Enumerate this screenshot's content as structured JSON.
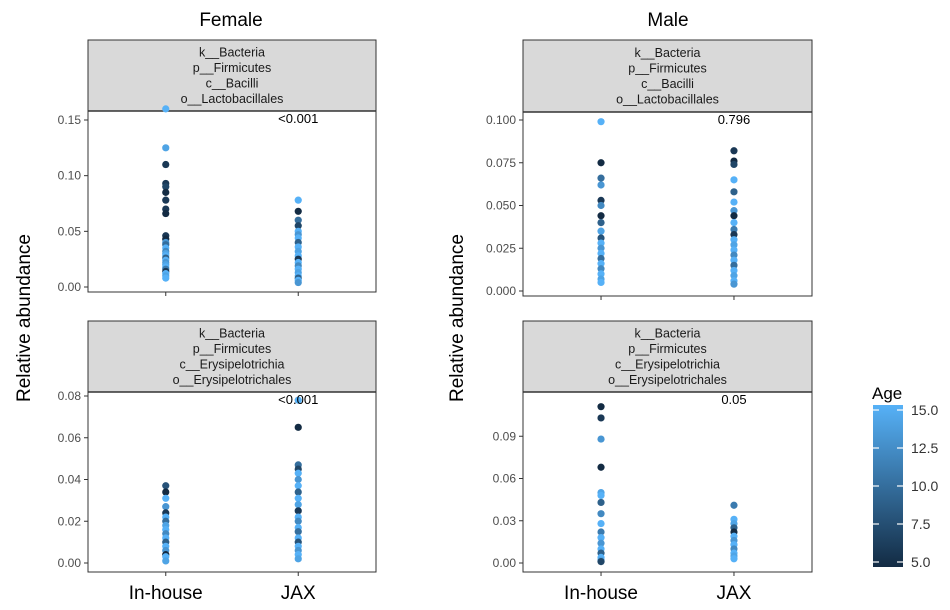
{
  "titles": {
    "female": "Female",
    "male": "Male"
  },
  "ylabel": "Relative abundance",
  "legend": {
    "title": "Age",
    "ticks": [
      "15.0",
      "12.5",
      "10.0",
      "7.5",
      "5.0"
    ],
    "min": 5,
    "max": 15,
    "color_low": "#132B43",
    "color_high": "#56B1F7"
  },
  "chart_data": [
    {
      "type": "scatter",
      "panel": "Female / Lactobacillales",
      "strip": [
        "k__Bacteria",
        "p__Firmicutes",
        "c__Bacilli",
        "o__Lactobacillales"
      ],
      "pvalue": "<0.001",
      "categories": [
        "In-house",
        "JAX"
      ],
      "ylim": [
        0,
        0.165
      ],
      "yticks": [
        "0.00",
        "0.05",
        "0.10",
        "0.15"
      ],
      "points": [
        {
          "x": "In-house",
          "y": 0.16,
          "age": 15
        },
        {
          "x": "In-house",
          "y": 0.125,
          "age": 14
        },
        {
          "x": "In-house",
          "y": 0.11,
          "age": 6
        },
        {
          "x": "In-house",
          "y": 0.093,
          "age": 6
        },
        {
          "x": "In-house",
          "y": 0.09,
          "age": 7
        },
        {
          "x": "In-house",
          "y": 0.085,
          "age": 5
        },
        {
          "x": "In-house",
          "y": 0.078,
          "age": 6
        },
        {
          "x": "In-house",
          "y": 0.07,
          "age": 6
        },
        {
          "x": "In-house",
          "y": 0.066,
          "age": 5
        },
        {
          "x": "In-house",
          "y": 0.046,
          "age": 6
        },
        {
          "x": "In-house",
          "y": 0.043,
          "age": 5
        },
        {
          "x": "In-house",
          "y": 0.04,
          "age": 13
        },
        {
          "x": "In-house",
          "y": 0.038,
          "age": 10
        },
        {
          "x": "In-house",
          "y": 0.035,
          "age": 15
        },
        {
          "x": "In-house",
          "y": 0.032,
          "age": 12
        },
        {
          "x": "In-house",
          "y": 0.03,
          "age": 14
        },
        {
          "x": "In-house",
          "y": 0.028,
          "age": 15
        },
        {
          "x": "In-house",
          "y": 0.026,
          "age": 9
        },
        {
          "x": "In-house",
          "y": 0.024,
          "age": 15
        },
        {
          "x": "In-house",
          "y": 0.022,
          "age": 13
        },
        {
          "x": "In-house",
          "y": 0.02,
          "age": 14
        },
        {
          "x": "In-house",
          "y": 0.018,
          "age": 15
        },
        {
          "x": "In-house",
          "y": 0.016,
          "age": 11
        },
        {
          "x": "In-house",
          "y": 0.014,
          "age": 6
        },
        {
          "x": "In-house",
          "y": 0.012,
          "age": 15
        },
        {
          "x": "In-house",
          "y": 0.01,
          "age": 14
        },
        {
          "x": "In-house",
          "y": 0.008,
          "age": 15
        },
        {
          "x": "JAX",
          "y": 0.078,
          "age": 15
        },
        {
          "x": "JAX",
          "y": 0.068,
          "age": 5
        },
        {
          "x": "JAX",
          "y": 0.06,
          "age": 10
        },
        {
          "x": "JAX",
          "y": 0.055,
          "age": 7
        },
        {
          "x": "JAX",
          "y": 0.05,
          "age": 15
        },
        {
          "x": "JAX",
          "y": 0.047,
          "age": 13
        },
        {
          "x": "JAX",
          "y": 0.044,
          "age": 15
        },
        {
          "x": "JAX",
          "y": 0.04,
          "age": 9
        },
        {
          "x": "JAX",
          "y": 0.036,
          "age": 15
        },
        {
          "x": "JAX",
          "y": 0.032,
          "age": 14
        },
        {
          "x": "JAX",
          "y": 0.028,
          "age": 15
        },
        {
          "x": "JAX",
          "y": 0.025,
          "age": 6
        },
        {
          "x": "JAX",
          "y": 0.022,
          "age": 15
        },
        {
          "x": "JAX",
          "y": 0.019,
          "age": 12
        },
        {
          "x": "JAX",
          "y": 0.016,
          "age": 15
        },
        {
          "x": "JAX",
          "y": 0.013,
          "age": 14
        },
        {
          "x": "JAX",
          "y": 0.01,
          "age": 15
        },
        {
          "x": "JAX",
          "y": 0.008,
          "age": 9
        },
        {
          "x": "JAX",
          "y": 0.006,
          "age": 15
        },
        {
          "x": "JAX",
          "y": 0.004,
          "age": 13
        }
      ]
    },
    {
      "type": "scatter",
      "panel": "Male / Lactobacillales",
      "strip": [
        "k__Bacteria",
        "p__Firmicutes",
        "c__Bacilli",
        "o__Lactobacillales"
      ],
      "pvalue": "0.796",
      "categories": [
        "In-house",
        "JAX"
      ],
      "ylim": [
        0,
        0.1
      ],
      "yticks": [
        "0.000",
        "0.025",
        "0.050",
        "0.075",
        "0.100"
      ],
      "points": [
        {
          "x": "In-house",
          "y": 0.099,
          "age": 15
        },
        {
          "x": "In-house",
          "y": 0.075,
          "age": 5
        },
        {
          "x": "In-house",
          "y": 0.066,
          "age": 10
        },
        {
          "x": "In-house",
          "y": 0.062,
          "age": 13
        },
        {
          "x": "In-house",
          "y": 0.053,
          "age": 6
        },
        {
          "x": "In-house",
          "y": 0.05,
          "age": 12
        },
        {
          "x": "In-house",
          "y": 0.044,
          "age": 5
        },
        {
          "x": "In-house",
          "y": 0.04,
          "age": 9
        },
        {
          "x": "In-house",
          "y": 0.035,
          "age": 14
        },
        {
          "x": "In-house",
          "y": 0.031,
          "age": 8
        },
        {
          "x": "In-house",
          "y": 0.028,
          "age": 15
        },
        {
          "x": "In-house",
          "y": 0.025,
          "age": 13
        },
        {
          "x": "In-house",
          "y": 0.022,
          "age": 15
        },
        {
          "x": "In-house",
          "y": 0.019,
          "age": 10
        },
        {
          "x": "In-house",
          "y": 0.016,
          "age": 15
        },
        {
          "x": "In-house",
          "y": 0.013,
          "age": 12
        },
        {
          "x": "In-house",
          "y": 0.01,
          "age": 15
        },
        {
          "x": "In-house",
          "y": 0.007,
          "age": 14
        },
        {
          "x": "In-house",
          "y": 0.005,
          "age": 15
        },
        {
          "x": "JAX",
          "y": 0.082,
          "age": 6
        },
        {
          "x": "JAX",
          "y": 0.076,
          "age": 5
        },
        {
          "x": "JAX",
          "y": 0.074,
          "age": 7
        },
        {
          "x": "JAX",
          "y": 0.065,
          "age": 15
        },
        {
          "x": "JAX",
          "y": 0.058,
          "age": 9
        },
        {
          "x": "JAX",
          "y": 0.052,
          "age": 15
        },
        {
          "x": "JAX",
          "y": 0.047,
          "age": 13
        },
        {
          "x": "JAX",
          "y": 0.044,
          "age": 5
        },
        {
          "x": "JAX",
          "y": 0.04,
          "age": 15
        },
        {
          "x": "JAX",
          "y": 0.036,
          "age": 11
        },
        {
          "x": "JAX",
          "y": 0.033,
          "age": 6
        },
        {
          "x": "JAX",
          "y": 0.03,
          "age": 15
        },
        {
          "x": "JAX",
          "y": 0.027,
          "age": 14
        },
        {
          "x": "JAX",
          "y": 0.024,
          "age": 15
        },
        {
          "x": "JAX",
          "y": 0.021,
          "age": 12
        },
        {
          "x": "JAX",
          "y": 0.018,
          "age": 15
        },
        {
          "x": "JAX",
          "y": 0.015,
          "age": 10
        },
        {
          "x": "JAX",
          "y": 0.012,
          "age": 15
        },
        {
          "x": "JAX",
          "y": 0.009,
          "age": 14
        },
        {
          "x": "JAX",
          "y": 0.006,
          "age": 15
        },
        {
          "x": "JAX",
          "y": 0.004,
          "age": 13
        }
      ]
    },
    {
      "type": "scatter",
      "panel": "Female / Erysipelotrichales",
      "strip": [
        "k__Bacteria",
        "p__Firmicutes",
        "c__Erysipelotrichia",
        "o__Erysipelotrichales"
      ],
      "pvalue": "<0.001",
      "categories": [
        "In-house",
        "JAX"
      ],
      "ylim": [
        0,
        0.08
      ],
      "yticks": [
        "0.00",
        "0.02",
        "0.04",
        "0.06",
        "0.08"
      ],
      "points": [
        {
          "x": "In-house",
          "y": 0.037,
          "age": 8
        },
        {
          "x": "In-house",
          "y": 0.034,
          "age": 5
        },
        {
          "x": "In-house",
          "y": 0.031,
          "age": 15
        },
        {
          "x": "In-house",
          "y": 0.027,
          "age": 13
        },
        {
          "x": "In-house",
          "y": 0.024,
          "age": 6
        },
        {
          "x": "In-house",
          "y": 0.022,
          "age": 15
        },
        {
          "x": "In-house",
          "y": 0.02,
          "age": 10
        },
        {
          "x": "In-house",
          "y": 0.018,
          "age": 14
        },
        {
          "x": "In-house",
          "y": 0.016,
          "age": 15
        },
        {
          "x": "In-house",
          "y": 0.014,
          "age": 12
        },
        {
          "x": "In-house",
          "y": 0.012,
          "age": 15
        },
        {
          "x": "In-house",
          "y": 0.01,
          "age": 9
        },
        {
          "x": "In-house",
          "y": 0.008,
          "age": 15
        },
        {
          "x": "In-house",
          "y": 0.006,
          "age": 13
        },
        {
          "x": "In-house",
          "y": 0.004,
          "age": 5
        },
        {
          "x": "In-house",
          "y": 0.003,
          "age": 15
        },
        {
          "x": "In-house",
          "y": 0.001,
          "age": 14
        },
        {
          "x": "JAX",
          "y": 0.078,
          "age": 15
        },
        {
          "x": "JAX",
          "y": 0.065,
          "age": 5
        },
        {
          "x": "JAX",
          "y": 0.047,
          "age": 10
        },
        {
          "x": "JAX",
          "y": 0.045,
          "age": 7
        },
        {
          "x": "JAX",
          "y": 0.043,
          "age": 15
        },
        {
          "x": "JAX",
          "y": 0.04,
          "age": 13
        },
        {
          "x": "JAX",
          "y": 0.037,
          "age": 15
        },
        {
          "x": "JAX",
          "y": 0.034,
          "age": 9
        },
        {
          "x": "JAX",
          "y": 0.031,
          "age": 15
        },
        {
          "x": "JAX",
          "y": 0.028,
          "age": 14
        },
        {
          "x": "JAX",
          "y": 0.025,
          "age": 6
        },
        {
          "x": "JAX",
          "y": 0.022,
          "age": 15
        },
        {
          "x": "JAX",
          "y": 0.02,
          "age": 12
        },
        {
          "x": "JAX",
          "y": 0.017,
          "age": 15
        },
        {
          "x": "JAX",
          "y": 0.015,
          "age": 10
        },
        {
          "x": "JAX",
          "y": 0.012,
          "age": 15
        },
        {
          "x": "JAX",
          "y": 0.01,
          "age": 8
        },
        {
          "x": "JAX",
          "y": 0.008,
          "age": 15
        },
        {
          "x": "JAX",
          "y": 0.006,
          "age": 13
        },
        {
          "x": "JAX",
          "y": 0.004,
          "age": 15
        },
        {
          "x": "JAX",
          "y": 0.002,
          "age": 14
        }
      ]
    },
    {
      "type": "scatter",
      "panel": "Male / Erysipelotrichales",
      "strip": [
        "k__Bacteria",
        "p__Firmicutes",
        "c__Erysipelotrichia",
        "o__Erysipelotrichales"
      ],
      "pvalue": "0.05",
      "categories": [
        "In-house",
        "JAX"
      ],
      "ylim": [
        0,
        0.12
      ],
      "yticks": [
        "0.00",
        "0.03",
        "0.06",
        "0.09"
      ],
      "points": [
        {
          "x": "In-house",
          "y": 0.111,
          "age": 5
        },
        {
          "x": "In-house",
          "y": 0.103,
          "age": 6
        },
        {
          "x": "In-house",
          "y": 0.088,
          "age": 13
        },
        {
          "x": "In-house",
          "y": 0.068,
          "age": 5
        },
        {
          "x": "In-house",
          "y": 0.05,
          "age": 14
        },
        {
          "x": "In-house",
          "y": 0.048,
          "age": 15
        },
        {
          "x": "In-house",
          "y": 0.043,
          "age": 9
        },
        {
          "x": "In-house",
          "y": 0.035,
          "age": 12
        },
        {
          "x": "In-house",
          "y": 0.028,
          "age": 15
        },
        {
          "x": "In-house",
          "y": 0.022,
          "age": 11
        },
        {
          "x": "In-house",
          "y": 0.018,
          "age": 15
        },
        {
          "x": "In-house",
          "y": 0.014,
          "age": 13
        },
        {
          "x": "In-house",
          "y": 0.01,
          "age": 15
        },
        {
          "x": "In-house",
          "y": 0.007,
          "age": 9
        },
        {
          "x": "In-house",
          "y": 0.004,
          "age": 15
        },
        {
          "x": "In-house",
          "y": 0.002,
          "age": 14
        },
        {
          "x": "In-house",
          "y": 0.001,
          "age": 7
        },
        {
          "x": "JAX",
          "y": 0.041,
          "age": 11
        },
        {
          "x": "JAX",
          "y": 0.031,
          "age": 15
        },
        {
          "x": "JAX",
          "y": 0.028,
          "age": 14
        },
        {
          "x": "JAX",
          "y": 0.025,
          "age": 9
        },
        {
          "x": "JAX",
          "y": 0.022,
          "age": 5
        },
        {
          "x": "JAX",
          "y": 0.019,
          "age": 15
        },
        {
          "x": "JAX",
          "y": 0.016,
          "age": 13
        },
        {
          "x": "JAX",
          "y": 0.013,
          "age": 15
        },
        {
          "x": "JAX",
          "y": 0.01,
          "age": 12
        },
        {
          "x": "JAX",
          "y": 0.007,
          "age": 15
        },
        {
          "x": "JAX",
          "y": 0.005,
          "age": 14
        },
        {
          "x": "JAX",
          "y": 0.003,
          "age": 15
        }
      ]
    }
  ]
}
